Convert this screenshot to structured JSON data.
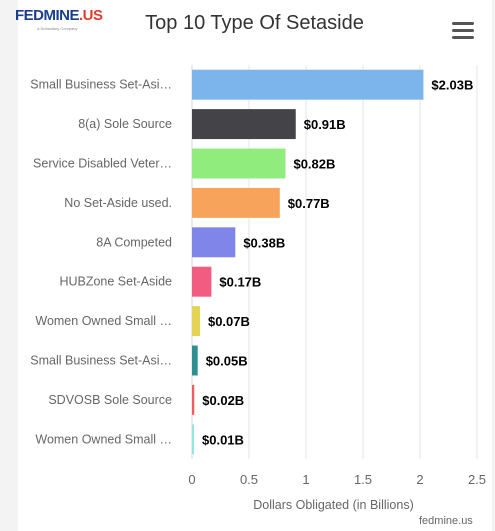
{
  "logo": {
    "brand_main": "FEDMINE",
    "brand_suffix": ".US",
    "tagline": "A Subsidiary Company"
  },
  "menu_icon": "hamburger-menu-icon",
  "credit": "fedmine.us",
  "chart_data": {
    "type": "bar",
    "orientation": "horizontal",
    "title": "Top 10 Type Of Setaside",
    "xlabel": "Dollars Obligated (in Billions)",
    "ylabel": "",
    "xlim": [
      0,
      2.5
    ],
    "xticks": [
      "0",
      "0.5",
      "1",
      "1.5",
      "2",
      "2.5"
    ],
    "grid": true,
    "categories": [
      "Small Business Set-Asi…",
      "8(a) Sole Source",
      "Service Disabled Veter…",
      "No Set-Aside used.",
      "8A Competed",
      "HUBZone Set-Aside",
      "Women Owned Small …",
      "Small Business Set-Asi…",
      "SDVOSB Sole Source",
      "Women Owned Small …"
    ],
    "values": [
      2.03,
      0.91,
      0.82,
      0.77,
      0.38,
      0.17,
      0.07,
      0.05,
      0.02,
      0.01
    ],
    "value_labels": [
      "$2.03B",
      "$0.91B",
      "$0.82B",
      "$0.77B",
      "$0.38B",
      "$0.17B",
      "$0.07B",
      "$0.05B",
      "$0.02B",
      "$0.01B"
    ],
    "colors": [
      "#7cb5ec",
      "#434348",
      "#90ed7d",
      "#f7a35c",
      "#8085e9",
      "#f15c80",
      "#e4d354",
      "#2b908f",
      "#f45b5b",
      "#91e8e1"
    ]
  }
}
